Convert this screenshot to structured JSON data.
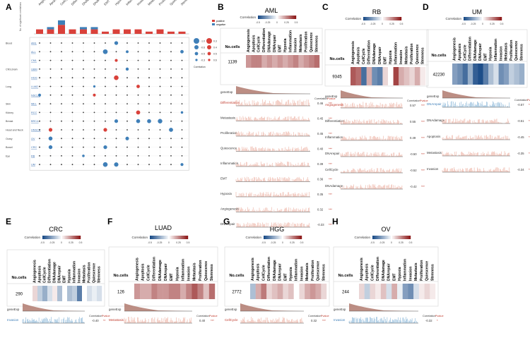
{
  "panel_letters": [
    "A",
    "B",
    "C",
    "D",
    "E",
    "F",
    "G",
    "H"
  ],
  "colors": {
    "pos": "#d9413a",
    "neg": "#3f7fb8",
    "paleRed": "#e8a290",
    "brown": "#b07a6e",
    "deep_blue": "#1d4e89",
    "deep_red": "#8e1b1b"
  },
  "labels": {
    "no_cells": "No.cells",
    "gene_exp": "geneExp",
    "correlation": "Correlation",
    "pvalue": "Pvalue",
    "stars": "***",
    "stars2": "**",
    "positive": "positive",
    "negative": "negative",
    "corr_legend": "Correlation"
  },
  "legend_ticks": [
    "-0.5",
    "-0.25",
    "0",
    "0.25",
    "0.5"
  ],
  "states": [
    "Angiogenesis",
    "Apoptosis",
    "CellCycle",
    "Differentiation",
    "DNAdamage",
    "DNArepair",
    "EMT",
    "Hypoxia",
    "Inflammation",
    "Invasion",
    "Metastasis",
    "Proliferation",
    "Quiescence",
    "Stemness"
  ],
  "panelA": {
    "ylabel": "No. of significant correlations",
    "tissues": [
      {
        "name": "Blood",
        "cancers": [
          "AML",
          "ALL",
          "CML"
        ]
      },
      {
        "name": "CNS,brain",
        "cancers": [
          "GBM"
        ]
      },
      {
        "name": "",
        "cancers": [
          "HGG"
        ]
      },
      {
        "name": "Lung",
        "cancers": [
          "LUAD",
          "NSCLC"
        ]
      },
      {
        "name": "Skin",
        "cancers": [
          "MEL"
        ]
      },
      {
        "name": "Kidney",
        "cancers": [
          "RCC"
        ]
      },
      {
        "name": "Breast",
        "cancers": [
          "BRCA"
        ]
      },
      {
        "name": "Head and Neck",
        "cancers": [
          "HNSCC"
        ]
      },
      {
        "name": "Ovary",
        "cancers": [
          "OV"
        ]
      },
      {
        "name": "Bowel",
        "cancers": [
          "CRC"
        ]
      },
      {
        "name": "Eye",
        "cancers": [
          "RB",
          "UM"
        ]
      }
    ],
    "bar_counts": [
      {
        "pos": 2,
        "neg": 0
      },
      {
        "pos": 2,
        "neg": 1
      },
      {
        "pos": 4,
        "neg": 2
      },
      {
        "pos": 2,
        "neg": 0
      },
      {
        "pos": 2,
        "neg": 1
      },
      {
        "pos": 2,
        "neg": 1
      },
      {
        "pos": 1,
        "neg": 0
      },
      {
        "pos": 2,
        "neg": 0
      },
      {
        "pos": 2,
        "neg": 0
      },
      {
        "pos": 2,
        "neg": 0
      },
      {
        "pos": 1,
        "neg": 0
      },
      {
        "pos": 2,
        "neg": 0
      },
      {
        "pos": 1,
        "neg": 0
      },
      {
        "pos": 1,
        "neg": 0
      }
    ],
    "size_legend": {
      "values": [
        "-1.0",
        "-0.6",
        "-0.5",
        "-0.3",
        "0.3",
        "0.4",
        "0.5",
        "0.6"
      ],
      "caption": "Correlation"
    }
  },
  "panels": {
    "B": {
      "title": "AML",
      "cells": "1139",
      "heat": [
        0.25,
        0.3,
        0.3,
        0.2,
        0.25,
        0.2,
        0.25,
        0.2,
        0.25,
        0.3,
        0.2,
        0.25,
        0.3,
        0.35
      ],
      "rows": [
        {
          "name": "Differentiation",
          "corr": "0.46",
          "p": "***",
          "hl": true
        },
        {
          "name": "Metastasis",
          "corr": "0.45",
          "p": "***"
        },
        {
          "name": "Proliferation",
          "corr": "0.45",
          "p": "***"
        },
        {
          "name": "Quiescence",
          "corr": "0.40",
          "p": "***"
        },
        {
          "name": "Inflammation",
          "corr": "0.39",
          "p": "***"
        },
        {
          "name": "EMT",
          "corr": "0.36",
          "p": "***"
        },
        {
          "name": "Hypoxia",
          "corr": "0.35",
          "p": "***"
        },
        {
          "name": "Angiogenesis",
          "corr": "0.32",
          "p": "***"
        },
        {
          "name": "DNArepair",
          "corr": "-0.33",
          "p": "***"
        }
      ]
    },
    "C": {
      "title": "RB",
      "cells": "9345",
      "heat": [
        0.4,
        0.35,
        -0.45,
        0.2,
        -0.35,
        -0.4,
        0.1,
        0.0,
        0.45,
        0.2,
        0.15,
        0.1,
        0.2,
        0.05
      ],
      "rows": [
        {
          "name": "Angiogenesis",
          "corr": "0.57",
          "p": "***",
          "hl": true
        },
        {
          "name": "Differentiation",
          "corr": "0.55",
          "p": "***"
        },
        {
          "name": "Inflammation",
          "corr": "0.49",
          "p": "***"
        },
        {
          "name": "DNArepair",
          "corr": "-0.50",
          "p": "***"
        },
        {
          "name": "CellCycle",
          "corr": "-0.52",
          "p": "***"
        },
        {
          "name": "DNAdamage",
          "corr": "-0.42",
          "p": "***"
        }
      ]
    },
    "D": {
      "title": "UM",
      "cells": "42230",
      "heat": [
        -0.3,
        -0.35,
        -0.45,
        -0.25,
        -0.5,
        -0.55,
        -0.4,
        -0.2,
        -0.1,
        -0.35,
        -0.3,
        -0.15,
        -0.2,
        -0.25
      ],
      "rows": [
        {
          "name": "DNArepair",
          "corr": "-0.57",
          "p": "***",
          "hl": true,
          "neg": true
        },
        {
          "name": "DNAdamage",
          "corr": "-0.51",
          "p": "***"
        },
        {
          "name": "Apoptosis",
          "corr": "-0.45",
          "p": "***"
        },
        {
          "name": "Metastasis",
          "corr": "-0.35",
          "p": "***"
        },
        {
          "name": "Invasion",
          "corr": "-0.34",
          "p": "***"
        }
      ]
    },
    "E": {
      "title": "CRC",
      "cells": "290",
      "heat": [
        0.1,
        -0.15,
        -0.25,
        -0.1,
        0.05,
        -0.2,
        0.0,
        -0.2,
        -0.15,
        -0.4,
        0.0,
        -0.1,
        -0.05,
        -0.1
      ],
      "rows": [
        {
          "name": "Invasion",
          "corr": "-0.40",
          "p": "**",
          "hl": true,
          "neg": true
        }
      ]
    },
    "F": {
      "title": "LUAD",
      "cells": "126",
      "heat": [
        0.25,
        0.2,
        0.2,
        0.3,
        0.25,
        0.25,
        0.3,
        0.3,
        0.2,
        0.3,
        0.4,
        0.3,
        0.15,
        0.35
      ],
      "rows": [
        {
          "name": "Metastasis",
          "corr": "0.40",
          "p": "***",
          "hl": true
        }
      ]
    },
    "G": {
      "title": "HGG",
      "cells": "2772",
      "heat": [
        -0.2,
        0.2,
        0.32,
        0.1,
        0.15,
        0.2,
        0.1,
        0.15,
        0.0,
        0.1,
        0.2,
        0.25,
        0.2,
        0.1
      ],
      "rows": [
        {
          "name": "CellCycle",
          "corr": "0.32",
          "p": "***",
          "hl": true
        }
      ]
    },
    "H": {
      "title": "OV",
      "cells": "244",
      "heat": [
        0.1,
        -0.15,
        0.1,
        0.05,
        0.15,
        -0.1,
        0.2,
        -0.05,
        -0.3,
        -0.35,
        -0.1,
        0.05,
        0.1,
        0.05
      ],
      "rows": [
        {
          "name": "Invasion",
          "corr": "-0.32",
          "p": "*",
          "hl": true,
          "neg": true
        }
      ]
    }
  }
}
